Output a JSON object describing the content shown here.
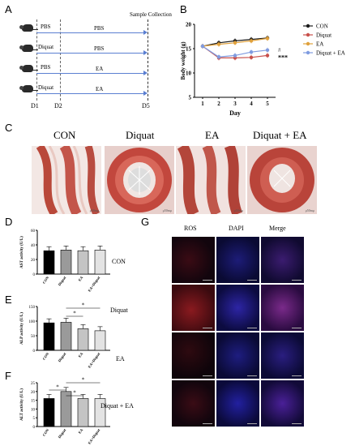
{
  "panel_labels": [
    "A",
    "B",
    "C",
    "D",
    "E",
    "F",
    "G"
  ],
  "panelA": {
    "sample_collection": "Sample Collection",
    "rows": [
      {
        "pre": "PBS",
        "post": "PBS"
      },
      {
        "pre": "Diquat",
        "post": "PBS"
      },
      {
        "pre": "PBS",
        "post": "EA"
      },
      {
        "pre": "Diquat",
        "post": "EA"
      }
    ],
    "days": [
      "D1",
      "D2",
      "D5"
    ]
  },
  "colors": {
    "con": "#1a1a1a",
    "diquat": "#c8504b",
    "ea": "#e0a13c",
    "diquat_ea": "#7f9be0"
  },
  "chart_data": [
    {
      "type": "line",
      "xlabel": "Day",
      "ylabel": "Body weight (g)",
      "x": [
        1,
        2,
        3,
        4,
        5
      ],
      "ylim": [
        5,
        20
      ],
      "yticks": [
        5,
        10,
        15,
        20
      ],
      "series": [
        {
          "name": "CON",
          "values": [
            15.5,
            16.2,
            16.6,
            16.9,
            17.2
          ]
        },
        {
          "name": "Diquat",
          "values": [
            15.5,
            13.1,
            13.1,
            13.2,
            13.6
          ]
        },
        {
          "name": "EA",
          "values": [
            15.5,
            15.9,
            16.2,
            16.6,
            17.1
          ]
        },
        {
          "name": "Diquat + EA",
          "values": [
            15.5,
            13.3,
            13.6,
            14.3,
            14.7
          ]
        }
      ],
      "annotations": [
        "#",
        "***"
      ],
      "legend": "right"
    },
    {
      "type": "bar",
      "ylabel": "AST activity (U/L)",
      "categories": [
        "CON",
        "Diquat",
        "EA",
        "EA+Diquat"
      ],
      "values": [
        32,
        33,
        32,
        33
      ],
      "ylim": [
        0,
        60
      ],
      "yticks": [
        0,
        20,
        40,
        60
      ]
    },
    {
      "type": "bar",
      "ylabel": "ALP activity (U/L)",
      "categories": [
        "CON",
        "Diquat",
        "EA",
        "EA+Diquat"
      ],
      "values": [
        94,
        96,
        74,
        67
      ],
      "ylim": [
        0,
        150
      ],
      "yticks": [
        0,
        50,
        100,
        150
      ],
      "annotations": [
        "*",
        "*"
      ]
    },
    {
      "type": "bar",
      "ylabel": "ALT activity (U/L)",
      "categories": [
        "CON",
        "Diquat",
        "EA",
        "EA+Diquat"
      ],
      "values": [
        16,
        20,
        16,
        16
      ],
      "ylim": [
        0,
        25
      ],
      "yticks": [
        0,
        5,
        10,
        15,
        20,
        25
      ],
      "annotations": [
        "*",
        "*",
        "*"
      ]
    }
  ],
  "panelC": {
    "titles": [
      "CON",
      "Diquat",
      "EA",
      "Diquat + EA"
    ],
    "scale": "μ50mμ"
  },
  "panelG": {
    "columns": [
      "ROS",
      "DAPI",
      "Merge"
    ],
    "rows": [
      "CON",
      "Diquat",
      "EA",
      "Diquat + EA"
    ]
  }
}
